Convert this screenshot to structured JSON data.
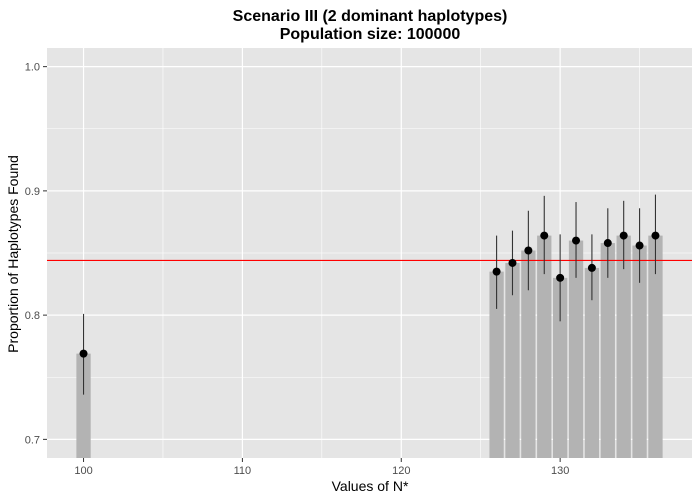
{
  "chart_data": {
    "type": "bar",
    "title": "Scenario III (2 dominant haplotypes)",
    "subtitle": "Population size: 100000",
    "xlabel": "Values of N*",
    "ylabel": "Proportion of Haplotypes Found",
    "xlim": [
      97.7,
      138.3
    ],
    "ylim": [
      0.685,
      1.015
    ],
    "x_ticks": [
      100,
      110,
      120,
      130
    ],
    "x_tick_labels": [
      "100",
      "110",
      "120",
      "130"
    ],
    "y_ticks": [
      0.7,
      0.8,
      0.9,
      1.0
    ],
    "y_tick_labels": [
      "0.7",
      "0.8",
      "0.9",
      "1.0"
    ],
    "grid": true,
    "reference_line": {
      "y": 0.844,
      "color": "#ff0000"
    },
    "colors": {
      "panel_background": "#e5e5e5",
      "grid": "#ffffff",
      "bar_fill": "#b3b3b3",
      "point": "#000000",
      "errorbar": "#333333"
    },
    "series": [
      {
        "x": [
          100,
          126,
          127,
          128,
          129,
          130,
          131,
          132,
          133,
          134,
          135,
          136
        ],
        "y": [
          0.769,
          0.835,
          0.842,
          0.852,
          0.864,
          0.83,
          0.86,
          0.838,
          0.858,
          0.864,
          0.856,
          0.864
        ],
        "lower": [
          0.736,
          0.805,
          0.816,
          0.82,
          0.833,
          0.795,
          0.83,
          0.812,
          0.83,
          0.837,
          0.826,
          0.833
        ],
        "upper": [
          0.801,
          0.864,
          0.868,
          0.884,
          0.896,
          0.865,
          0.891,
          0.865,
          0.886,
          0.892,
          0.886,
          0.897
        ]
      }
    ]
  }
}
